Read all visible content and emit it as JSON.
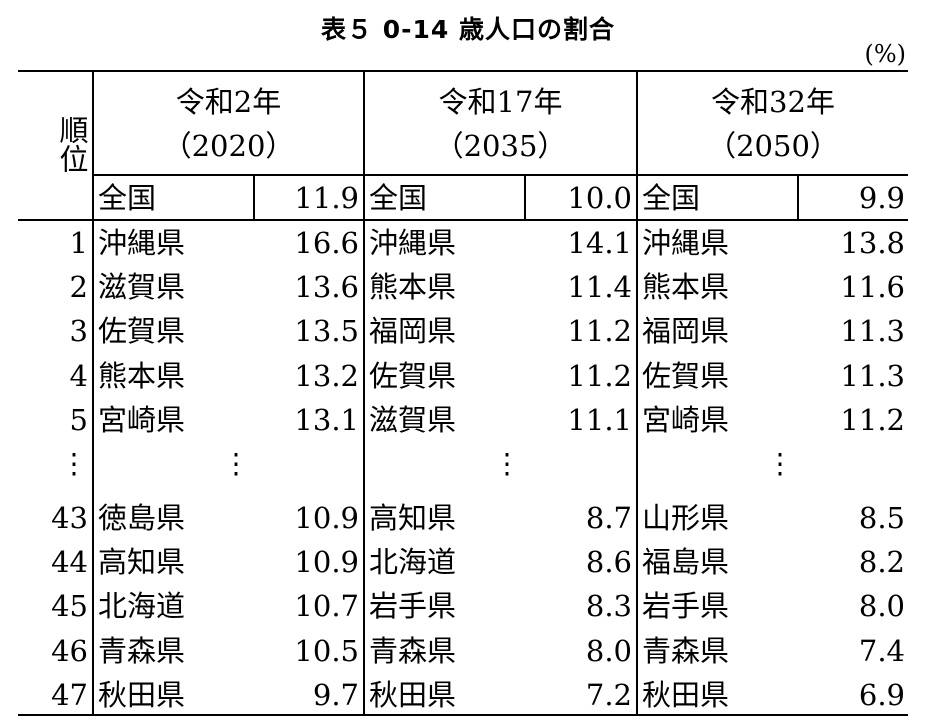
{
  "title": "表５ 0-14 歳人口の割合",
  "unit": "(%)",
  "header": {
    "rank_label": "順位",
    "periods": [
      {
        "era": "令和2年",
        "year": "（2020）"
      },
      {
        "era": "令和17年",
        "year": "（2035）"
      },
      {
        "era": "令和32年",
        "year": "（2050）"
      }
    ]
  },
  "national": {
    "label": "全国",
    "values": [
      "11.9",
      "10.0",
      "9.9"
    ]
  },
  "ellipsis": "⋮",
  "rows_top": [
    {
      "rank": "1",
      "cols": [
        {
          "pref": "沖縄県",
          "val": "16.6"
        },
        {
          "pref": "沖縄県",
          "val": "14.1"
        },
        {
          "pref": "沖縄県",
          "val": "13.8"
        }
      ]
    },
    {
      "rank": "2",
      "cols": [
        {
          "pref": "滋賀県",
          "val": "13.6"
        },
        {
          "pref": "熊本県",
          "val": "11.4"
        },
        {
          "pref": "熊本県",
          "val": "11.6"
        }
      ]
    },
    {
      "rank": "3",
      "cols": [
        {
          "pref": "佐賀県",
          "val": "13.5"
        },
        {
          "pref": "福岡県",
          "val": "11.2"
        },
        {
          "pref": "福岡県",
          "val": "11.3"
        }
      ]
    },
    {
      "rank": "4",
      "cols": [
        {
          "pref": "熊本県",
          "val": "13.2"
        },
        {
          "pref": "佐賀県",
          "val": "11.2"
        },
        {
          "pref": "佐賀県",
          "val": "11.3"
        }
      ]
    },
    {
      "rank": "5",
      "cols": [
        {
          "pref": "宮崎県",
          "val": "13.1"
        },
        {
          "pref": "滋賀県",
          "val": "11.1"
        },
        {
          "pref": "宮崎県",
          "val": "11.2"
        }
      ]
    }
  ],
  "rows_bottom": [
    {
      "rank": "43",
      "cols": [
        {
          "pref": "徳島県",
          "val": "10.9"
        },
        {
          "pref": "高知県",
          "val": "8.7"
        },
        {
          "pref": "山形県",
          "val": "8.5"
        }
      ]
    },
    {
      "rank": "44",
      "cols": [
        {
          "pref": "高知県",
          "val": "10.9"
        },
        {
          "pref": "北海道",
          "val": "8.6"
        },
        {
          "pref": "福島県",
          "val": "8.2"
        }
      ]
    },
    {
      "rank": "45",
      "cols": [
        {
          "pref": "北海道",
          "val": "10.7"
        },
        {
          "pref": "岩手県",
          "val": "8.3"
        },
        {
          "pref": "岩手県",
          "val": "8.0"
        }
      ]
    },
    {
      "rank": "46",
      "cols": [
        {
          "pref": "青森県",
          "val": "10.5"
        },
        {
          "pref": "青森県",
          "val": "8.0"
        },
        {
          "pref": "青森県",
          "val": "7.4"
        }
      ]
    },
    {
      "rank": "47",
      "cols": [
        {
          "pref": "秋田県",
          "val": "9.7"
        },
        {
          "pref": "秋田県",
          "val": "7.2"
        },
        {
          "pref": "秋田県",
          "val": "6.9"
        }
      ]
    }
  ]
}
